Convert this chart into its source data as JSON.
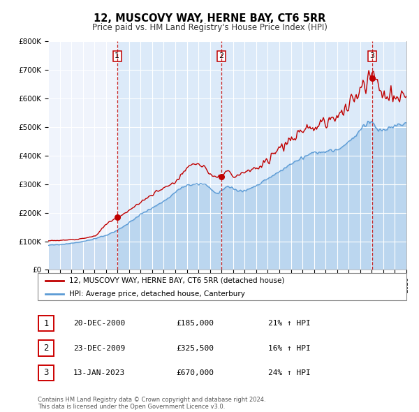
{
  "title": "12, MUSCOVY WAY, HERNE BAY, CT6 5RR",
  "subtitle": "Price paid vs. HM Land Registry's House Price Index (HPI)",
  "x_start_year": 1995,
  "x_end_year": 2026,
  "ylim": [
    0,
    800000
  ],
  "yticks": [
    0,
    100000,
    200000,
    300000,
    400000,
    500000,
    600000,
    700000,
    800000
  ],
  "ytick_labels": [
    "£0",
    "£100K",
    "£200K",
    "£300K",
    "£400K",
    "£500K",
    "£600K",
    "£700K",
    "£800K"
  ],
  "hpi_color": "#5b9bd5",
  "price_color": "#c00000",
  "dashed_line_color": "#c00000",
  "sale_points": [
    {
      "year_decimal": 2000.97,
      "price": 185000,
      "label": "1"
    },
    {
      "year_decimal": 2009.98,
      "price": 325500,
      "label": "2"
    },
    {
      "year_decimal": 2023.04,
      "price": 670000,
      "label": "3"
    }
  ],
  "table_rows": [
    {
      "num": "1",
      "date": "20-DEC-2000",
      "price": "£185,000",
      "pct": "21% ↑ HPI"
    },
    {
      "num": "2",
      "date": "23-DEC-2009",
      "price": "£325,500",
      "pct": "16% ↑ HPI"
    },
    {
      "num": "3",
      "date": "13-JAN-2023",
      "price": "£670,000",
      "pct": "24% ↑ HPI"
    }
  ],
  "legend_line1": "12, MUSCOVY WAY, HERNE BAY, CT6 5RR (detached house)",
  "legend_line2": "HPI: Average price, detached house, Canterbury",
  "footer1": "Contains HM Land Registry data © Crown copyright and database right 2024.",
  "footer2": "This data is licensed under the Open Government Licence v3.0.",
  "background_chart": "#f0f4fc",
  "shade_color": "#d0e4f7",
  "grid_color": "#ffffff"
}
